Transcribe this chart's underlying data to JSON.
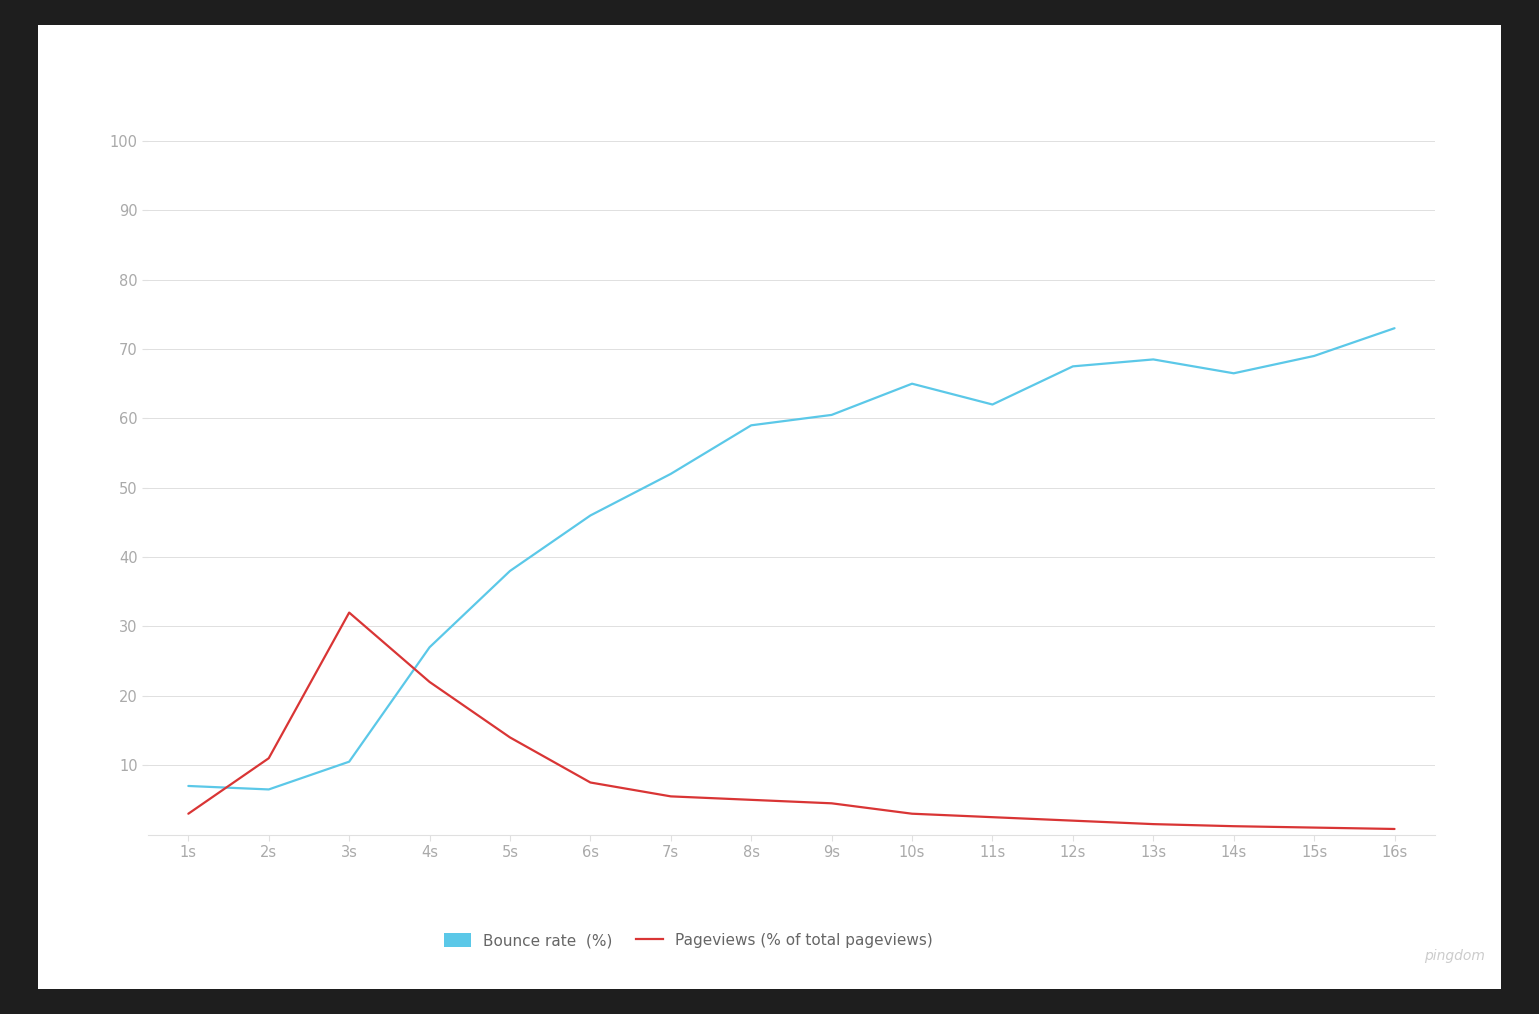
{
  "x_labels": [
    "1s",
    "2s",
    "3s",
    "4s",
    "5s",
    "6s",
    "7s",
    "8s",
    "9s",
    "10s",
    "11s",
    "12s",
    "13s",
    "14s",
    "15s",
    "16s"
  ],
  "x_values": [
    1,
    2,
    3,
    4,
    5,
    6,
    7,
    8,
    9,
    10,
    11,
    12,
    13,
    14,
    15,
    16
  ],
  "bounce_rate": [
    7,
    6.5,
    10.5,
    27,
    38,
    46,
    52,
    59,
    60.5,
    65,
    62,
    67.5,
    68.5,
    66.5,
    69,
    73
  ],
  "pageviews": [
    3,
    11,
    32,
    22,
    14,
    7.5,
    5.5,
    5,
    4.5,
    3,
    2.5,
    2,
    1.5,
    1.2,
    1.0,
    0.8
  ],
  "bounce_color": "#5bc8e8",
  "pageviews_color": "#d93535",
  "background_color": "#ffffff",
  "outer_background": "#1e1e1e",
  "card_background": "#ffffff",
  "grid_color": "#e0e0e0",
  "tick_color": "#aaaaaa",
  "ylim": [
    0,
    100
  ],
  "yticks": [
    10,
    20,
    30,
    40,
    50,
    60,
    70,
    80,
    90,
    100
  ],
  "legend_bounce_label": "Bounce rate  (%)",
  "legend_pageviews_label": "Pageviews (% of total pageviews)",
  "line_width": 1.6
}
